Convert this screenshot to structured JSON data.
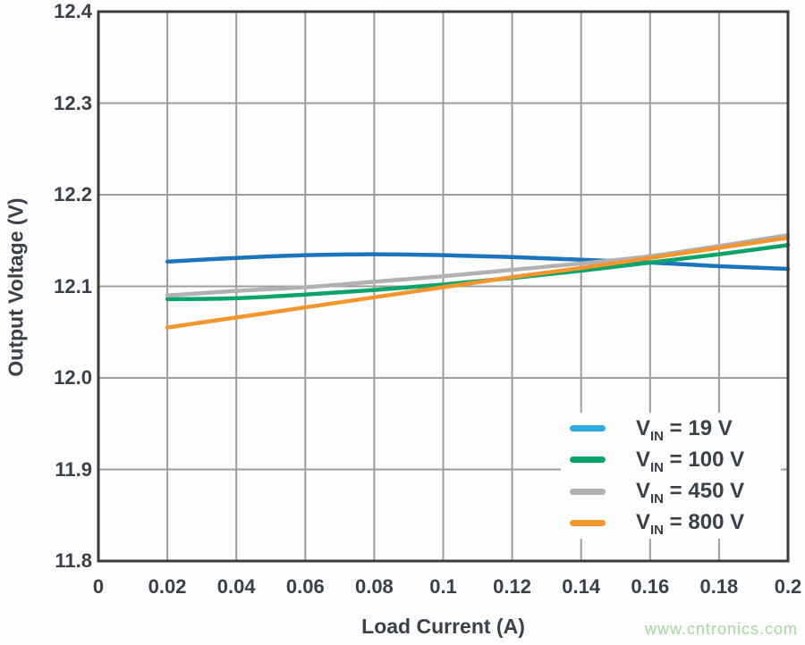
{
  "watermark": "www.cntronics.com",
  "colors": {
    "background": "#fdfdfd",
    "text": "#3a4149",
    "grid": "#9d9da0",
    "frame": "#3b3b3b",
    "watermark": "#a7d7a1"
  },
  "chart_data": {
    "type": "line",
    "title": "",
    "xlabel": "Load Current (A)",
    "ylabel": "Output Voltage (V)",
    "xlim": [
      0,
      0.2
    ],
    "ylim": [
      11.8,
      12.4
    ],
    "grid": true,
    "legend_position": "lower-right",
    "x_ticks": [
      0,
      0.02,
      0.04,
      0.06,
      0.08,
      0.1,
      0.12,
      0.14,
      0.16,
      0.18,
      0.2
    ],
    "x_tick_labels": [
      "0",
      "0.02",
      "0.04",
      "0.06",
      "0.08",
      "0.1",
      "0.12",
      "0.14",
      "0.16",
      "0.18",
      "0.2"
    ],
    "y_ticks": [
      11.8,
      11.9,
      12.0,
      12.1,
      12.2,
      12.3,
      12.4
    ],
    "y_tick_labels": [
      "11.8",
      "11.9",
      "12.0",
      "12.1",
      "12.2",
      "12.3",
      "12.4"
    ],
    "x": [
      0.02,
      0.04,
      0.06,
      0.08,
      0.1,
      0.12,
      0.14,
      0.16,
      0.18,
      0.2
    ],
    "series": [
      {
        "name": "VIN = 19 V",
        "label_prefix": "V",
        "label_sub": "IN",
        "label_rest": " = 19 V",
        "color": "#1c75bc",
        "legend_color": "#2fa9e1",
        "values": [
          12.127,
          12.131,
          12.134,
          12.135,
          12.134,
          12.132,
          12.129,
          12.126,
          12.122,
          12.119
        ]
      },
      {
        "name": "VIN = 100 V",
        "label_prefix": "V",
        "label_sub": "IN",
        "label_rest": " = 100 V",
        "color": "#0aa46a",
        "legend_color": "#0aa46a",
        "values": [
          12.086,
          12.087,
          12.091,
          12.096,
          12.102,
          12.109,
          12.117,
          12.126,
          12.135,
          12.145
        ]
      },
      {
        "name": "VIN = 450 V",
        "label_prefix": "V",
        "label_sub": "IN",
        "label_rest": " = 450 V",
        "color": "#b1b1b4",
        "legend_color": "#b1b1b4",
        "values": [
          12.09,
          12.095,
          12.099,
          12.105,
          12.111,
          12.118,
          12.125,
          12.133,
          12.144,
          12.156
        ]
      },
      {
        "name": "VIN = 800 V",
        "label_prefix": "V",
        "label_sub": "IN",
        "label_rest": " = 800 V",
        "color": "#f2962d",
        "legend_color": "#f2962d",
        "values": [
          12.055,
          12.066,
          12.077,
          12.088,
          12.099,
          12.11,
          12.12,
          12.131,
          12.142,
          12.153
        ]
      }
    ]
  }
}
